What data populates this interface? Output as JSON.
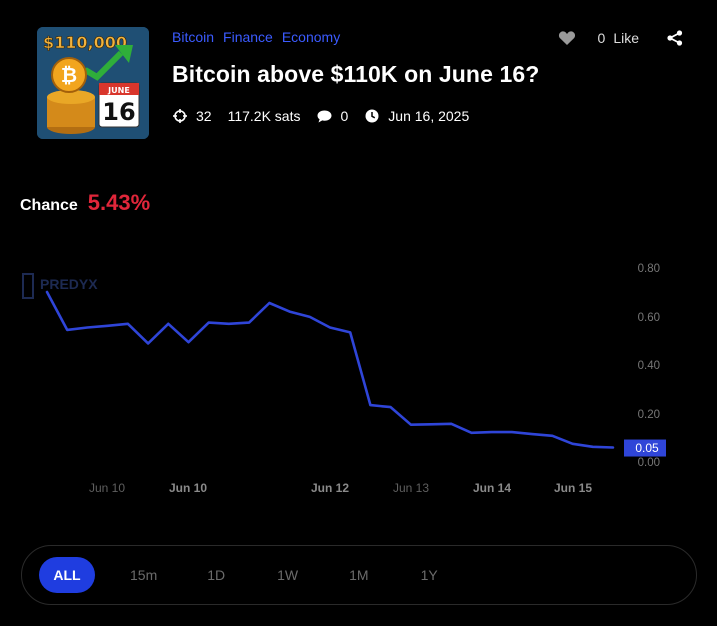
{
  "header": {
    "thumbnail": {
      "price_text": "$110,000",
      "month_text": "JUNE",
      "day_text": "16",
      "icon": "bitcoin-coins-calendar"
    },
    "tags": [
      "Bitcoin",
      "Finance",
      "Economy"
    ],
    "title": "Bitcoin above $110K on June 16?",
    "meta": {
      "traders": "32",
      "volume": "117.2K sats",
      "comments": "0",
      "date": "Jun 16, 2025"
    },
    "actions": {
      "like_count": "0",
      "like_label": "Like"
    }
  },
  "chance": {
    "label": "Chance",
    "value": "5.43%"
  },
  "chart_data": {
    "type": "line",
    "watermark": "PREDYX",
    "y_ticks": [
      "0.80",
      "0.60",
      "0.40",
      "0.20",
      "0.00"
    ],
    "ylim": [
      0,
      0.8
    ],
    "x_labels": [
      {
        "text": "Jun 10",
        "bold": false
      },
      {
        "text": "Jun 10",
        "bold": true
      },
      {
        "text": "Jun 12",
        "bold": true
      },
      {
        "text": "Jun 13",
        "bold": false
      },
      {
        "text": "Jun 14",
        "bold": true
      },
      {
        "text": "Jun 15",
        "bold": true
      }
    ],
    "current_value_label": "0.05",
    "series": [
      {
        "color": "#2f45d8",
        "values": [
          0.69,
          0.535,
          0.545,
          0.552,
          0.56,
          0.48,
          0.56,
          0.485,
          0.565,
          0.56,
          0.565,
          0.645,
          0.61,
          0.588,
          0.545,
          0.525,
          0.228,
          0.22,
          0.148,
          0.15,
          0.152,
          0.115,
          0.118,
          0.118,
          0.11,
          0.103,
          0.07,
          0.058,
          0.055
        ]
      }
    ]
  },
  "ranges": [
    "ALL",
    "15m",
    "1D",
    "1W",
    "1M",
    "1Y"
  ],
  "active_range": "ALL"
}
